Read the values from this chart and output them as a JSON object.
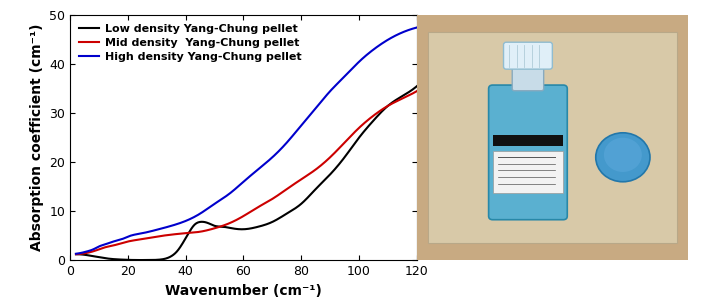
{
  "xlabel": "Wavenumber (cm⁻¹)",
  "ylabel": "Absorption coefficient (cm⁻¹)",
  "xlim": [
    0,
    120
  ],
  "ylim": [
    0,
    50
  ],
  "xticks": [
    0,
    20,
    40,
    60,
    80,
    100,
    120
  ],
  "yticks": [
    0,
    10,
    20,
    30,
    40,
    50
  ],
  "legend": [
    {
      "label": "Low density Yang-Chung pellet",
      "color": "#000000"
    },
    {
      "label": "Mid density  Yang-Chung pellet",
      "color": "#cc0000"
    },
    {
      "label": "High density Yang-Chung pellet",
      "color": "#0000cc"
    }
  ],
  "low_density_x": [
    2,
    4,
    6,
    8,
    10,
    12,
    15,
    18,
    20,
    22,
    25,
    27,
    29,
    31,
    33,
    35,
    37,
    39,
    41,
    43,
    45,
    48,
    50,
    53,
    56,
    60,
    65,
    70,
    75,
    80,
    85,
    90,
    95,
    100,
    105,
    110,
    115,
    120
  ],
  "low_density_y": [
    1.2,
    1.15,
    1.0,
    0.8,
    0.6,
    0.4,
    0.2,
    0.1,
    0.05,
    0.02,
    0.01,
    0.02,
    0.03,
    0.1,
    0.3,
    0.8,
    1.8,
    3.5,
    5.5,
    7.2,
    7.8,
    7.5,
    7.0,
    6.8,
    6.5,
    6.3,
    6.8,
    7.8,
    9.5,
    11.5,
    14.5,
    17.5,
    21.0,
    25.0,
    28.5,
    31.5,
    33.5,
    35.5
  ],
  "mid_density_x": [
    2,
    4,
    6,
    8,
    10,
    12,
    15,
    18,
    20,
    25,
    30,
    35,
    40,
    45,
    50,
    55,
    60,
    65,
    70,
    75,
    80,
    85,
    90,
    95,
    100,
    105,
    110,
    115,
    120
  ],
  "mid_density_y": [
    1.2,
    1.3,
    1.5,
    1.8,
    2.2,
    2.6,
    3.0,
    3.5,
    3.8,
    4.3,
    4.8,
    5.2,
    5.5,
    5.8,
    6.5,
    7.5,
    9.0,
    10.8,
    12.5,
    14.5,
    16.5,
    18.5,
    21.0,
    24.0,
    27.0,
    29.5,
    31.5,
    33.0,
    34.5
  ],
  "high_density_x": [
    2,
    4,
    6,
    8,
    10,
    12,
    15,
    18,
    20,
    25,
    30,
    35,
    40,
    45,
    50,
    55,
    60,
    65,
    70,
    75,
    80,
    85,
    90,
    95,
    100,
    105,
    110,
    115,
    120
  ],
  "high_density_y": [
    1.3,
    1.5,
    1.8,
    2.2,
    2.8,
    3.2,
    3.8,
    4.3,
    4.8,
    5.5,
    6.2,
    7.0,
    8.0,
    9.5,
    11.5,
    13.5,
    16.0,
    18.5,
    21.0,
    24.0,
    27.5,
    31.0,
    34.5,
    37.5,
    40.5,
    43.0,
    45.0,
    46.5,
    47.5
  ],
  "bg_color": "#ffffff",
  "plot_bg_color": "#ffffff",
  "tick_fontsize": 9,
  "label_fontsize": 10,
  "legend_fontsize": 8,
  "linewidth": 1.5,
  "photo_bg": "#c8aa82",
  "photo_paper": "#d8c9a8",
  "photo_bottle_body": "#5ab0d0",
  "photo_bottle_neck": "#d0e8f0",
  "photo_cap": "#c8e4f2",
  "photo_pellet": "#4499cc",
  "photo_label_dark": "#111111",
  "photo_label_light": "#f0f0f0"
}
